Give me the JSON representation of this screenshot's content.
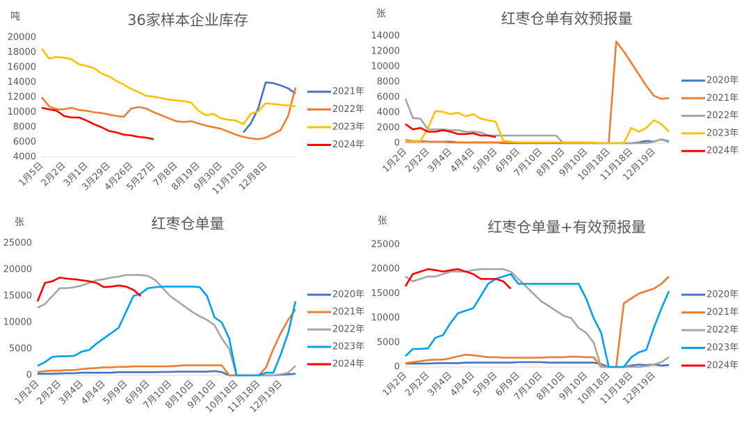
{
  "chart_data": [
    {
      "type": "line",
      "title": "36家样本企业库存",
      "y_label": "吨",
      "categories": [
        "1月5日",
        null,
        null,
        "2月2日",
        null,
        null,
        "3月1日",
        null,
        null,
        "3月29日",
        null,
        null,
        "4月26日",
        null,
        null,
        "5月27日",
        null,
        null,
        "7月8日",
        null,
        null,
        "8月19日",
        null,
        null,
        "9月30日",
        null,
        null,
        "11月10日",
        null,
        null,
        "12月8日",
        null,
        null,
        null,
        null
      ],
      "ylim": [
        4000,
        20000
      ],
      "yticks": [
        4000,
        6000,
        8000,
        10000,
        12000,
        14000,
        16000,
        18000,
        20000
      ],
      "series": [
        {
          "name": "2021年",
          "color": "#4472c4",
          "values": [
            null,
            null,
            null,
            null,
            null,
            null,
            null,
            null,
            null,
            null,
            null,
            null,
            null,
            null,
            null,
            null,
            null,
            null,
            null,
            null,
            null,
            null,
            null,
            null,
            null,
            null,
            null,
            7300,
            8500,
            10500,
            14000,
            13900,
            13600,
            13200,
            12500
          ]
        },
        {
          "name": "2022年",
          "color": "#ed7d31",
          "values": [
            12000,
            10800,
            10400,
            10400,
            10600,
            10300,
            10200,
            10000,
            9900,
            9700,
            9500,
            9400,
            10500,
            10700,
            10500,
            10000,
            9600,
            9200,
            8800,
            8700,
            8800,
            8500,
            8200,
            8000,
            7800,
            7400,
            7000,
            6700,
            6500,
            6400,
            6600,
            7100,
            7600,
            9500,
            13300
          ]
        },
        {
          "name": "2023年",
          "color": "#ffc000",
          "values": [
            18500,
            17200,
            17400,
            17300,
            17100,
            16400,
            16200,
            15900,
            15200,
            14800,
            14200,
            13700,
            13100,
            12700,
            12200,
            12100,
            11900,
            11700,
            11600,
            11500,
            11300,
            10200,
            9600,
            9800,
            9200,
            9000,
            8900,
            8400,
            9800,
            10100,
            11200,
            11100,
            11000,
            10900,
            10800
          ]
        },
        {
          "name": "2024年",
          "color": "#ff0000",
          "values": [
            10600,
            10400,
            10200,
            9500,
            9300,
            9300,
            8900,
            8400,
            8000,
            7500,
            7300,
            7000,
            6900,
            6700,
            6600,
            6400,
            null,
            null,
            null,
            null,
            null,
            null,
            null,
            null,
            null,
            null,
            null,
            null,
            null,
            null,
            null,
            null,
            null,
            null,
            null
          ]
        }
      ]
    },
    {
      "type": "line",
      "title": "红枣仓单有效预报量",
      "y_label": "张",
      "categories": [
        "1月2日",
        null,
        null,
        "2月2日",
        null,
        null,
        "3月4日",
        null,
        null,
        "4月4日",
        null,
        null,
        "5月9日",
        null,
        null,
        "6月9日",
        null,
        null,
        "7月10日",
        null,
        null,
        "8月10日",
        null,
        null,
        "9月10日",
        null,
        null,
        "10月18日",
        null,
        null,
        "11月18日",
        null,
        null,
        "12月19日",
        null,
        null
      ],
      "ylim": [
        0,
        14000
      ],
      "yticks": [
        0,
        2000,
        4000,
        6000,
        8000,
        10000,
        12000,
        14000
      ],
      "series": [
        {
          "name": "2020年",
          "color": "#4472c4",
          "values": [
            400,
            300,
            300,
            200,
            200,
            200,
            200,
            100,
            100,
            100,
            100,
            100,
            100,
            0,
            0,
            0,
            0,
            0,
            0,
            0,
            0,
            0,
            0,
            0,
            0,
            0,
            0,
            0,
            0,
            0,
            0,
            100,
            300,
            200,
            500,
            200
          ]
        },
        {
          "name": "2021年",
          "color": "#ed7d31",
          "values": [
            200,
            200,
            200,
            200,
            200,
            200,
            100,
            100,
            100,
            100,
            100,
            100,
            100,
            100,
            100,
            100,
            100,
            100,
            100,
            100,
            100,
            100,
            100,
            100,
            100,
            0,
            0,
            0,
            13300,
            12000,
            10500,
            9000,
            7500,
            6200,
            5800,
            5900
          ]
        },
        {
          "name": "2022年",
          "color": "#a5a5a5",
          "values": [
            5800,
            3300,
            3200,
            1800,
            1800,
            1800,
            1700,
            1700,
            1500,
            1500,
            1400,
            1000,
            1000,
            1000,
            1000,
            1000,
            1000,
            1000,
            1000,
            1000,
            1000,
            0,
            0,
            0,
            0,
            0,
            0,
            0,
            0,
            0,
            0,
            0,
            0,
            200,
            500,
            300
          ]
        },
        {
          "name": "2023年",
          "color": "#ffc000",
          "values": [
            300,
            300,
            300,
            2000,
            4200,
            4100,
            3800,
            4000,
            3500,
            3800,
            3200,
            3000,
            2800,
            300,
            200,
            100,
            100,
            100,
            100,
            100,
            100,
            100,
            100,
            100,
            100,
            100,
            0,
            0,
            0,
            0,
            2000,
            1500,
            2000,
            3000,
            2500,
            1500
          ]
        },
        {
          "name": "2024年",
          "color": "#ff0000",
          "values": [
            2500,
            1800,
            2000,
            1500,
            1500,
            1700,
            1500,
            1200,
            1200,
            1300,
            1000,
            1000,
            800,
            null,
            null,
            null,
            null,
            null,
            null,
            null,
            null,
            null,
            null,
            null,
            null,
            null,
            null,
            null,
            null,
            null,
            null,
            null,
            null,
            null,
            null,
            null
          ]
        }
      ]
    },
    {
      "type": "line",
      "title": "红枣仓单量",
      "y_label": "张",
      "categories": [
        "1月2日",
        null,
        null,
        "2月2日",
        null,
        null,
        "3月4日",
        null,
        null,
        "4月4日",
        null,
        null,
        "5月9日",
        null,
        null,
        "6月9日",
        null,
        null,
        "7月10日",
        null,
        null,
        "8月10日",
        null,
        null,
        "9月10日",
        null,
        null,
        "10月18日",
        null,
        null,
        "11月18日",
        null,
        null,
        "12月19日",
        null,
        null
      ],
      "ylim": [
        0,
        25000
      ],
      "yticks": [
        0,
        5000,
        10000,
        15000,
        20000,
        25000
      ],
      "series": [
        {
          "name": "2020年",
          "color": "#4472c4",
          "values": [
            300,
            300,
            300,
            350,
            400,
            400,
            500,
            500,
            500,
            500,
            500,
            600,
            600,
            600,
            600,
            600,
            600,
            650,
            650,
            700,
            700,
            700,
            700,
            700,
            800,
            600,
            0,
            0,
            0,
            0,
            0,
            0,
            0,
            100,
            200,
            300
          ]
        },
        {
          "name": "2021年",
          "color": "#ed7d31",
          "values": [
            600,
            800,
            900,
            900,
            1000,
            1000,
            1200,
            1300,
            1400,
            1500,
            1500,
            1600,
            1600,
            1700,
            1700,
            1700,
            1700,
            1700,
            1700,
            1800,
            1900,
            1900,
            1900,
            1900,
            1900,
            1900,
            0,
            0,
            0,
            0,
            0,
            1500,
            5000,
            8000,
            10500,
            12500
          ]
        },
        {
          "name": "2022年",
          "color": "#a5a5a5",
          "values": [
            12800,
            13500,
            15000,
            16500,
            16500,
            16700,
            17000,
            17500,
            18000,
            18200,
            18500,
            18700,
            19000,
            19000,
            19000,
            18800,
            18000,
            16500,
            15000,
            14000,
            13000,
            12000,
            11200,
            10500,
            9500,
            7000,
            5000,
            0,
            0,
            0,
            0,
            0,
            0,
            200,
            500,
            1800
          ]
        },
        {
          "name": "2023年",
          "color": "#00a0f0",
          "values": [
            1800,
            2500,
            3500,
            3600,
            3600,
            3700,
            4500,
            4800,
            6000,
            7000,
            8000,
            9000,
            12000,
            15000,
            15500,
            16500,
            16700,
            16800,
            16800,
            16800,
            16800,
            16800,
            16700,
            15000,
            11000,
            10000,
            7000,
            0,
            0,
            0,
            0,
            500,
            500,
            4000,
            8000,
            14000
          ]
        },
        {
          "name": "2024年",
          "color": "#ff0000",
          "values": [
            14000,
            17500,
            17800,
            18500,
            18300,
            18200,
            18000,
            17800,
            17500,
            16700,
            16800,
            17000,
            16800,
            16200,
            15000,
            null,
            null,
            null,
            null,
            null,
            null,
            null,
            null,
            null,
            null,
            null,
            null,
            null,
            null,
            null,
            null,
            null,
            null,
            null,
            null,
            null
          ]
        }
      ]
    },
    {
      "type": "line",
      "title": "红枣仓单量+有效预报量",
      "y_label": "张",
      "categories": [
        "1月2日",
        null,
        null,
        "2月2日",
        null,
        null,
        "3月4日",
        null,
        null,
        "4月4日",
        null,
        null,
        "5月9日",
        null,
        null,
        "6月9日",
        null,
        null,
        "7月10日",
        null,
        null,
        "8月10日",
        null,
        null,
        "9月10日",
        null,
        null,
        "10月18日",
        null,
        null,
        "11月18日",
        null,
        null,
        "12月19日",
        null,
        null
      ],
      "ylim": [
        0,
        25000
      ],
      "yticks": [
        0,
        5000,
        10000,
        15000,
        20000,
        25000
      ],
      "series": [
        {
          "name": "2020年",
          "color": "#4472c4",
          "values": [
            700,
            700,
            700,
            700,
            800,
            800,
            800,
            800,
            900,
            900,
            900,
            900,
            900,
            900,
            900,
            1000,
            1000,
            1000,
            1000,
            900,
            900,
            900,
            900,
            900,
            900,
            900,
            600,
            0,
            0,
            0,
            300,
            500,
            400,
            500,
            300,
            400
          ]
        },
        {
          "name": "2021年",
          "color": "#ed7d31",
          "values": [
            800,
            1000,
            1200,
            1400,
            1500,
            1500,
            1800,
            2200,
            2500,
            2400,
            2200,
            2000,
            2000,
            1900,
            1900,
            1900,
            1900,
            1900,
            1900,
            2000,
            2000,
            2000,
            2100,
            2100,
            2000,
            2000,
            0,
            0,
            0,
            13000,
            14000,
            15000,
            15500,
            16000,
            17000,
            18500
          ]
        },
        {
          "name": "2022年",
          "color": "#a5a5a5",
          "values": [
            18500,
            17500,
            18000,
            18500,
            18500,
            19000,
            19500,
            19500,
            19500,
            19800,
            20000,
            20000,
            20000,
            20000,
            19500,
            18000,
            16500,
            15000,
            13500,
            12500,
            11500,
            10500,
            10000,
            8000,
            7000,
            5000,
            0,
            0,
            0,
            0,
            0,
            0,
            200,
            500,
            1000,
            2000
          ]
        },
        {
          "name": "2023年",
          "color": "#00a0f0",
          "values": [
            2200,
            3700,
            3700,
            3800,
            6000,
            6500,
            9000,
            11000,
            11500,
            12000,
            14500,
            17000,
            18000,
            18500,
            19000,
            17000,
            17000,
            17000,
            17000,
            17000,
            17000,
            17000,
            17000,
            17000,
            14000,
            10000,
            7000,
            0,
            0,
            0,
            2000,
            3000,
            3500,
            8000,
            12000,
            15500
          ]
        },
        {
          "name": "2024年",
          "color": "#ff0000",
          "values": [
            16500,
            19000,
            19500,
            20000,
            19800,
            19500,
            19800,
            20000,
            19500,
            19000,
            18000,
            18000,
            18000,
            17500,
            16000,
            null,
            null,
            null,
            null,
            null,
            null,
            null,
            null,
            null,
            null,
            null,
            null,
            null,
            null,
            null,
            null,
            null,
            null,
            null,
            null,
            null
          ]
        }
      ]
    }
  ]
}
